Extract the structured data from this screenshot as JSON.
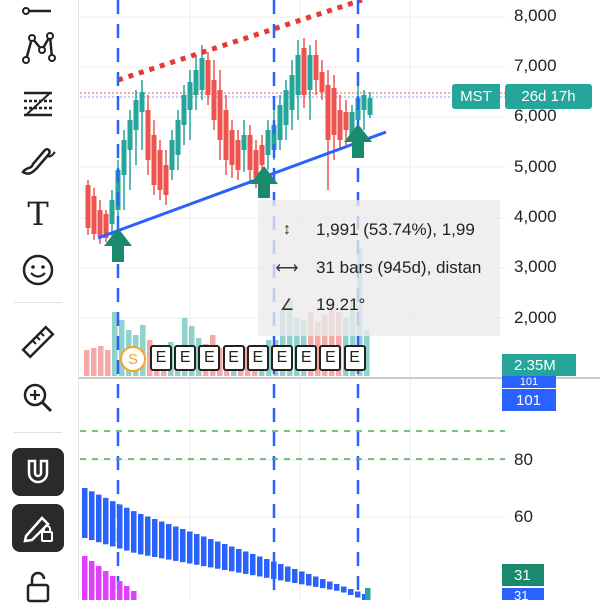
{
  "toolbar": {
    "tools": [
      {
        "name": "trend-line-icon"
      },
      {
        "name": "pattern-icon"
      },
      {
        "name": "fib-icon"
      },
      {
        "name": "brush-icon"
      },
      {
        "name": "text-icon"
      },
      {
        "name": "emoji-icon"
      },
      {
        "name": "ruler-icon"
      },
      {
        "name": "zoom-in-icon"
      },
      {
        "name": "magnet-icon"
      },
      {
        "name": "pencil-lock-icon"
      },
      {
        "name": "lock-icon"
      }
    ],
    "text_tool_glyph": "T"
  },
  "price_axis": {
    "labels": [
      "8,000",
      "7,000",
      "6,000",
      "5,000",
      "4,000",
      "3,000",
      "2,000"
    ]
  },
  "symbol_badge": {
    "symbol": "MST",
    "timer": "26d 17h",
    "color": "#26a69a"
  },
  "volume_badge": {
    "label": "2.35M",
    "color": "#26a69a"
  },
  "indicator_badge": {
    "top": "101",
    "main": "101",
    "color": "#2962ff"
  },
  "lower_axis": {
    "labels": [
      "80",
      "60"
    ]
  },
  "lower_badges": {
    "green": "31",
    "blue": "31"
  },
  "measure": {
    "price_change": "1,991 (53.74%), 1,99",
    "bars": "31 bars (945d), distan",
    "angle": "19.21°"
  },
  "events": {
    "split_label": "S",
    "earnings_labels": [
      "E",
      "E",
      "E",
      "E",
      "E",
      "E",
      "E",
      "E",
      "E"
    ]
  },
  "colors": {
    "up": "#26a69a",
    "down": "#ef5350",
    "trend": "#2962ff",
    "resistance": "#e53935",
    "marker": "#1a8a6e",
    "indicator_blue": "#2962ff",
    "indicator_magenta": "#e040fb",
    "level_green": "#4caf50"
  }
}
